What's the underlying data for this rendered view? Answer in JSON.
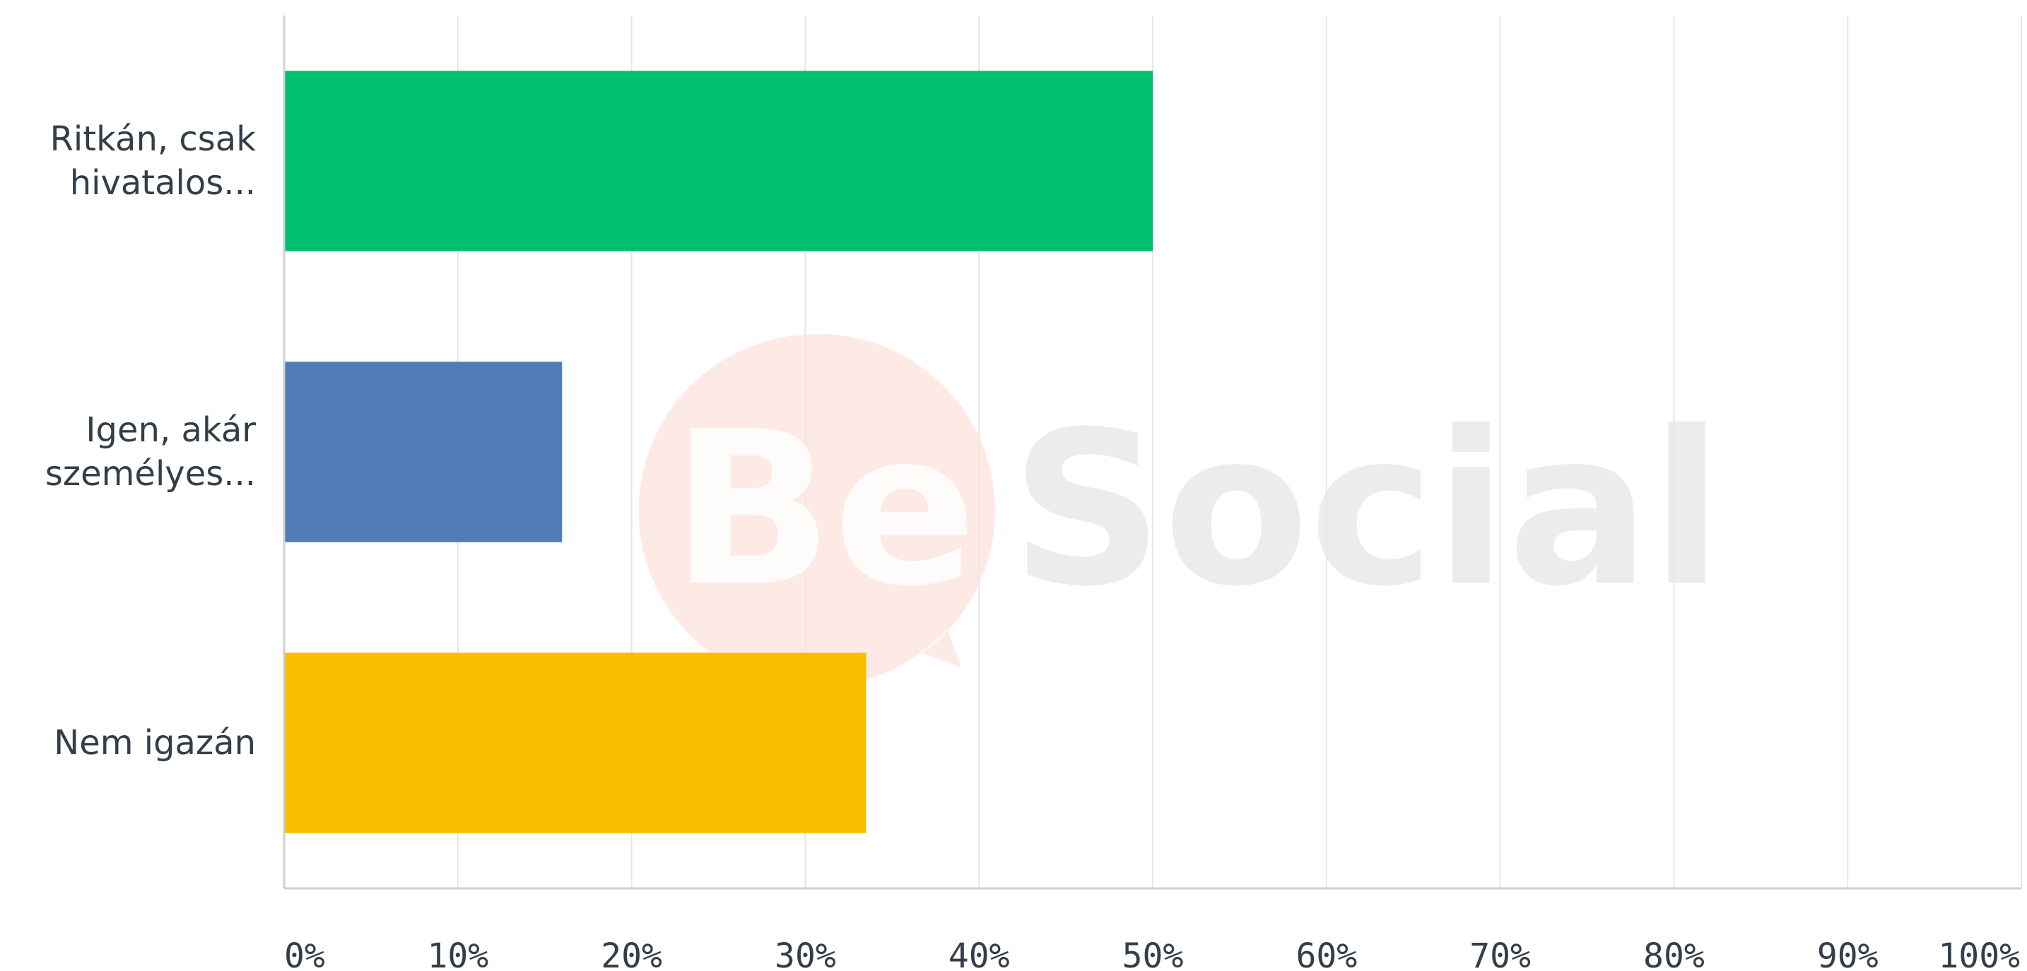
{
  "chart_data": {
    "type": "bar",
    "orientation": "horizontal",
    "categories": [
      "Ritkán, csak hivatalos...",
      "Igen, akár személyes...",
      "Nem igazán"
    ],
    "category_lines": [
      [
        "Ritkán, csak",
        "hivatalos..."
      ],
      [
        "Igen, akár",
        "személyes..."
      ],
      [
        "Nem igazán"
      ]
    ],
    "values": [
      50,
      16,
      33.5
    ],
    "colors": [
      "#00bf6f",
      "#507cb6",
      "#f9be00"
    ],
    "xlim": [
      0,
      100
    ],
    "x_ticks": [
      0,
      10,
      20,
      30,
      40,
      50,
      60,
      70,
      80,
      90,
      100
    ],
    "x_tick_labels": [
      "0%",
      "10%",
      "20%",
      "30%",
      "40%",
      "50%",
      "60%",
      "70%",
      "80%",
      "90%",
      "100%"
    ],
    "grid": true,
    "gridline_color": "#e6e6e6",
    "axis_color": "#d0d0d0",
    "title": "",
    "xlabel": "",
    "ylabel": ""
  },
  "watermark": {
    "text_be": "Be",
    "text_social": "Social",
    "bubble_color": "#fde3dc",
    "social_color": "#e8e8e8"
  }
}
